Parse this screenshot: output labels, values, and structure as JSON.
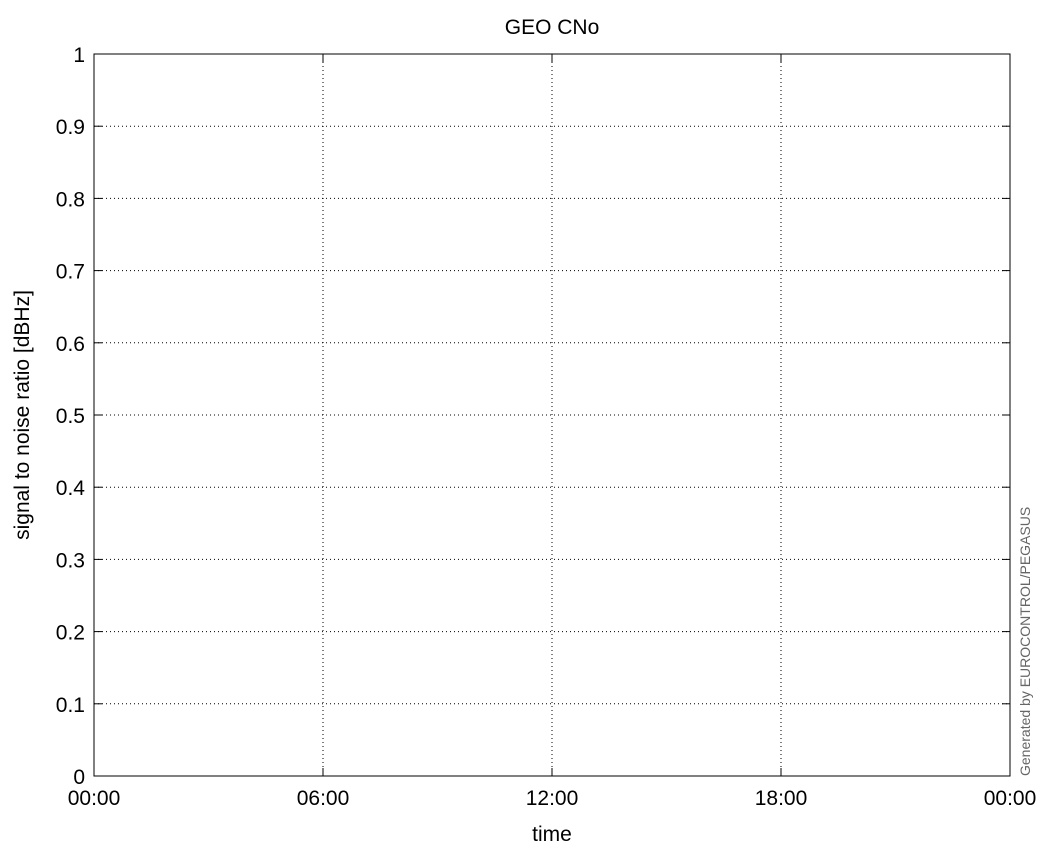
{
  "chart_data": {
    "type": "line",
    "title": "GEO CNo",
    "xlabel": "time",
    "ylabel": "signal to noise ratio [dBHz]",
    "x_ticks": [
      "00:00",
      "06:00",
      "12:00",
      "18:00",
      "00:00"
    ],
    "y_ticks": [
      "0",
      "0.1",
      "0.2",
      "0.3",
      "0.4",
      "0.5",
      "0.6",
      "0.7",
      "0.8",
      "0.9",
      "1"
    ],
    "ylim": [
      0,
      1
    ],
    "xlim": [
      "00:00",
      "00:00"
    ],
    "grid": true,
    "series": []
  },
  "credit": "Generated by EUROCONTROL/PEGASUS"
}
